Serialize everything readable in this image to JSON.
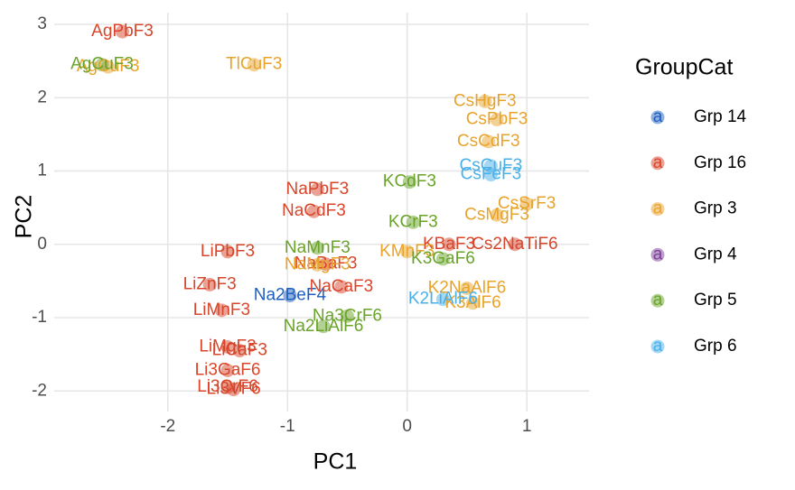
{
  "chart_data": {
    "type": "scatter",
    "x_label": "PC1",
    "y_label": "PC2",
    "legend_title": "GroupCat",
    "legend_key": "a",
    "xlim": [
      -2.95,
      1.52
    ],
    "ylim": [
      -2.28,
      3.16
    ],
    "xticks": [
      -2,
      -1,
      0,
      1
    ],
    "yticks": [
      -2,
      -1,
      0,
      1,
      2,
      3
    ],
    "grid": true,
    "legend_position": "right",
    "series": [
      {
        "name": "Grp 14",
        "color": "#1f5fbf",
        "x": [
          -0.98
        ],
        "y": [
          -0.7
        ],
        "labels": [
          "Na2BeF4"
        ]
      },
      {
        "name": "Grp 16",
        "color": "#d8452a",
        "x": [
          -2.38,
          -0.75,
          -0.78,
          -1.5,
          -1.65,
          -1.55,
          -0.55,
          -0.68,
          -1.5,
          -1.4,
          -1.5,
          -1.5,
          -1.45,
          0.35,
          0.9
        ],
        "y": [
          2.9,
          0.75,
          0.45,
          -0.1,
          -0.55,
          -0.9,
          -0.58,
          -0.27,
          -1.4,
          -1.45,
          -1.72,
          -1.95,
          -1.98,
          0.0,
          0.0
        ],
        "labels": [
          "AgPbF3",
          "NaPbF3",
          "NaCdF3",
          "LiPbF3",
          "LiZnF3",
          "LiMnF3",
          "NaCaF3",
          "NaBaF3",
          "LiMgF3",
          "LiCaF3",
          "Li3GaF6",
          "Li3CrF6",
          "Li3VF6",
          "KBaF3",
          "Cs2NaTiF6"
        ]
      },
      {
        "name": "Grp 3",
        "color": "#e8a32a",
        "x": [
          -1.28,
          0.65,
          0.75,
          0.68,
          1.0,
          0.75,
          -0.75,
          0.0,
          0.5,
          0.55,
          -2.5
        ],
        "y": [
          2.45,
          1.95,
          1.7,
          1.4,
          0.55,
          0.4,
          -0.28,
          -0.1,
          -0.6,
          -0.8,
          2.42
        ],
        "labels": [
          "TlCuF3",
          "CsHgF3",
          "CsPbF3",
          "CsCdF3",
          "CsSrF3",
          "CsMgF3",
          "NaMgF3",
          "KMnF3",
          "K2NaAlF6",
          "K3AlF6",
          "AgCuF3"
        ]
      },
      {
        "name": "Grp 4",
        "color": "#7b3f99",
        "x": [],
        "y": [],
        "labels": []
      },
      {
        "name": "Grp 5",
        "color": "#6aa32a",
        "x": [
          -2.55,
          0.02,
          -0.75,
          -0.5,
          -0.7,
          0.05,
          0.3
        ],
        "y": [
          2.45,
          0.85,
          -0.05,
          -0.98,
          -1.12,
          0.3,
          -0.2
        ],
        "labels": [
          "AgCuF3",
          "KCdF3",
          "NaMnF3",
          "Na3CrF6",
          "Na2LiAlF6",
          "KCrF3",
          "K3GaF6"
        ]
      },
      {
        "name": "Grp 6",
        "color": "#4ab0e8",
        "x": [
          0.7,
          0.7,
          0.3
        ],
        "y": [
          1.07,
          0.95,
          -0.75
        ],
        "labels": [
          "CsCuF3",
          "CsFeF3",
          "K2LiAlF6"
        ]
      }
    ]
  }
}
